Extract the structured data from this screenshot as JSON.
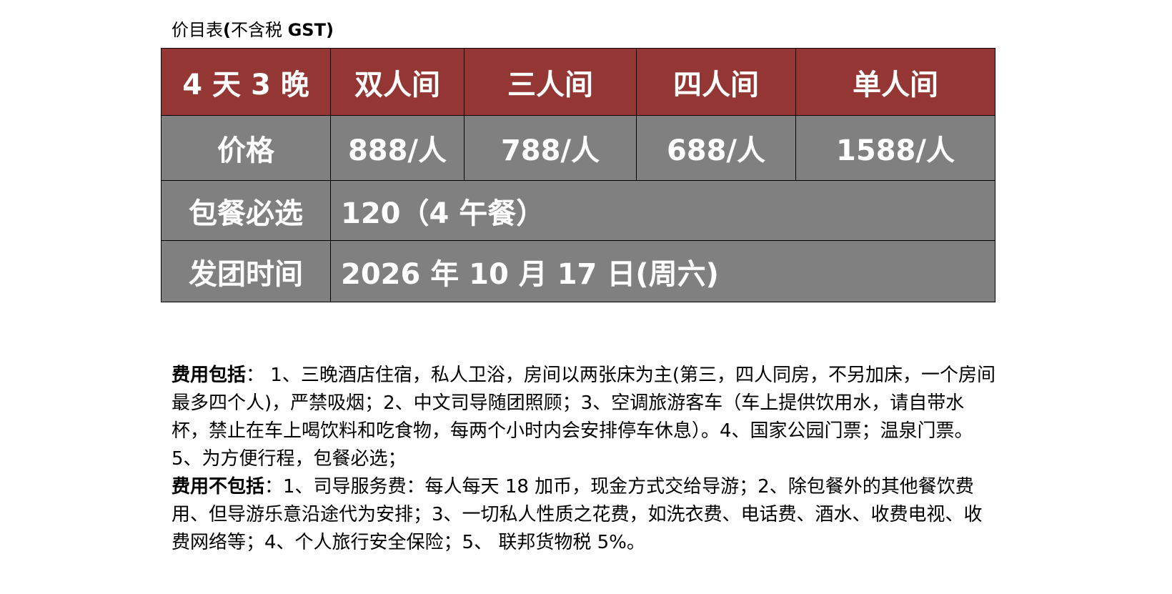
{
  "title": {
    "part1": "价目表",
    "part2": "(",
    "part3": "不含税 ",
    "part4": "GST)"
  },
  "table": {
    "header": [
      "4 天 3 晚",
      "双人间",
      "三人间",
      "四人间",
      "单人间"
    ],
    "price_row": {
      "label": "价格",
      "values": [
        "888/人",
        "788/人",
        "688/人",
        "1588/人"
      ]
    },
    "meal_row": {
      "label": "包餐必选",
      "value": "120（4 午餐）"
    },
    "date_row": {
      "label": "发团时间",
      "value": "2026  年 10 月 17 日(周六)"
    }
  },
  "colors": {
    "header_bg": "#943634",
    "body_bg": "#808080"
  },
  "includes": {
    "label": "费用包括",
    "text": "：    1、三晚酒店住宿，私人卫浴，房间以两张床为主(第三，四人同房，不另加床，一个房间最多四个人)，严禁吸烟；2、中文司导随团照顾；3、空调旅游客车（车上提供饮用水，请自带水杯，禁止在车上喝饮料和吃食物，每两个小时内会安排停车休息）。4、国家公园门票；温泉门票。5、为方便行程，包餐必选；"
  },
  "excludes": {
    "label": "费用不包括",
    "text": "：1、司导服务费：每人每天 18 加币，现金方式交给导游；2、除包餐外的其他餐饮费用、但导游乐意沿途代为安排；3、一切私人性质之花费，如洗衣费、电话费、酒水、收费电视、收费网络等；4、个人旅行安全保险；5、  联邦货物税 5%。"
  }
}
